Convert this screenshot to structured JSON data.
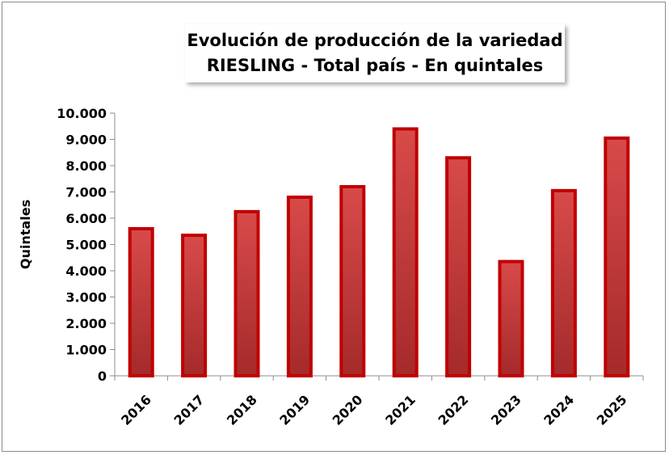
{
  "chart_data": {
    "type": "bar",
    "title_lines": [
      "Evolución de producción de la variedad",
      "RIESLING - Total país - En quintales"
    ],
    "xlabel": "",
    "ylabel": "Quintales",
    "categories": [
      "2016",
      "2017",
      "2018",
      "2019",
      "2020",
      "2021",
      "2022",
      "2023",
      "2024",
      "2025"
    ],
    "values": [
      5600,
      5350,
      6250,
      6800,
      7200,
      9400,
      8300,
      4350,
      7050,
      9050
    ],
    "ylim": [
      0,
      10000
    ],
    "y_ticks": [
      0,
      1000,
      2000,
      3000,
      4000,
      5000,
      6000,
      7000,
      8000,
      9000,
      10000
    ],
    "y_tick_labels": [
      "0",
      "1.000",
      "2.000",
      "3.000",
      "4.000",
      "5.000",
      "6.000",
      "7.000",
      "8.000",
      "9.000",
      "10.000"
    ],
    "grid": false,
    "legend": "none",
    "colors": {
      "bar_fill_light": "#d84a4a",
      "bar_fill_dark": "#a52a2a",
      "bar_border": "#c00000",
      "axis": "#8c8c8c"
    }
  }
}
